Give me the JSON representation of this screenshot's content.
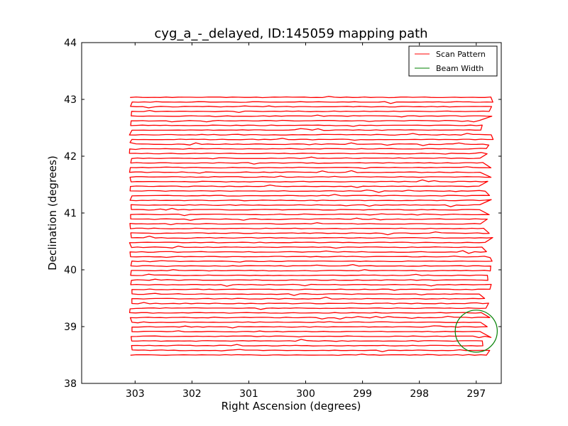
{
  "chart_data": {
    "type": "line",
    "title": "cyg_a_-_delayed, ID:145059 mapping path",
    "xlabel": "Right Ascension (degrees)",
    "ylabel": "Declination (degrees)",
    "xlim": [
      303.94,
      296.56
    ],
    "ylim": [
      38,
      44
    ],
    "xticks": [
      303,
      302,
      301,
      300,
      299,
      298,
      297
    ],
    "xtick_labels": [
      "303",
      "302",
      "301",
      "300",
      "299",
      "298",
      "297"
    ],
    "yticks": [
      38,
      39,
      40,
      41,
      42,
      43,
      44
    ],
    "ytick_labels": [
      "38",
      "39",
      "40",
      "41",
      "42",
      "43",
      "44"
    ],
    "grid": false,
    "legend_position": "top-right",
    "series": [
      {
        "name": "Scan Pattern",
        "color": "#ff0000",
        "ra_start": 303.0,
        "ra_end": 297.0,
        "dec_start": 38.5,
        "dec_end": 43.0,
        "dec_step": 0.0825,
        "pattern": "raster, alternating scan direction"
      },
      {
        "name": "Beam Width",
        "color": "#008000",
        "center_ra": 297.0,
        "center_dec": 38.92,
        "radius_deg": 0.37
      }
    ],
    "legend": [
      {
        "label": "Scan Pattern",
        "color": "#ff0000"
      },
      {
        "label": "Beam Width",
        "color": "#008000"
      }
    ]
  }
}
